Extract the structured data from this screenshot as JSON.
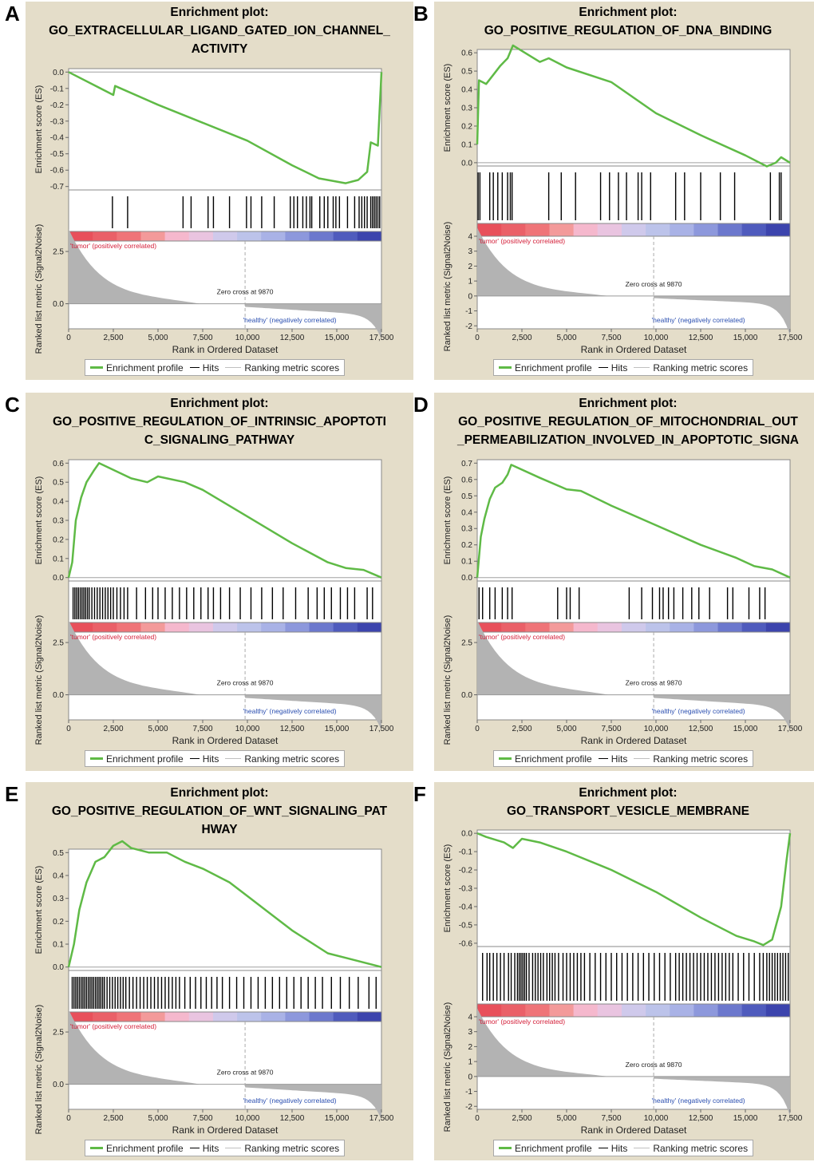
{
  "common": {
    "title_prefix": "Enrichment plot:",
    "xlabel": "Rank in Ordered Dataset",
    "ylabel_es": "Enrichment score (ES)",
    "ylabel_rank": "Ranked list metric (Signal2Noise)",
    "tumor_label": "'tumor' (positively correlated)",
    "healthy_label": "'healthy' (negatively correlated)",
    "zero_cross": "Zero cross at 9870",
    "legend": [
      "Enrichment profile",
      "Hits",
      "Ranking metric scores"
    ],
    "x_ticks": [
      "0",
      "2,500",
      "5,000",
      "7,500",
      "10,000",
      "12,500",
      "15,000",
      "17,500"
    ],
    "colors": {
      "es_line": "#5fba46",
      "metric_fill": "#b3b3b3",
      "panel_bg": "#e4ddc9",
      "tumor_text": "#d4203a",
      "healthy_text": "#2b4fb0"
    }
  },
  "chart_data": [
    {
      "panel": "A",
      "type": "line",
      "title_lines": [
        "GO_EXTRACELLULAR_LIGAND_GATED_ION_CHANNEL_",
        "ACTIVITY"
      ],
      "x_range": [
        0,
        17500
      ],
      "es_range": [
        -0.7,
        0.0
      ],
      "es_ticks": [
        "0.0",
        "-0.1",
        "-0.2",
        "-0.3",
        "-0.4",
        "-0.5",
        "-0.6",
        "-0.7"
      ],
      "rank_ticks": [
        "2.5",
        "0.0"
      ],
      "rank_range": [
        -1.2,
        3.0
      ],
      "es_points": [
        [
          0,
          0
        ],
        [
          2500,
          -0.14
        ],
        [
          2600,
          -0.085
        ],
        [
          5000,
          -0.2
        ],
        [
          7500,
          -0.31
        ],
        [
          10000,
          -0.42
        ],
        [
          12500,
          -0.57
        ],
        [
          14000,
          -0.65
        ],
        [
          15500,
          -0.68
        ],
        [
          16200,
          -0.66
        ],
        [
          16700,
          -0.61
        ],
        [
          16900,
          -0.43
        ],
        [
          17300,
          -0.45
        ],
        [
          17500,
          0
        ]
      ],
      "hits": [
        2450,
        3300,
        6400,
        6850,
        7800,
        8100,
        9000,
        9950,
        10200,
        10800,
        11500,
        12400,
        12600,
        12800,
        13100,
        13300,
        13500,
        13600,
        14050,
        14300,
        14500,
        14800,
        14950,
        15150,
        15600,
        16000,
        16250,
        16400,
        16550,
        16700,
        16900,
        17000,
        17100,
        17200,
        17300,
        17400
      ]
    },
    {
      "panel": "B",
      "type": "line",
      "title_lines": [
        "GO_POSITIVE_REGULATION_OF_DNA_BINDING"
      ],
      "x_range": [
        0,
        17500
      ],
      "es_range": [
        0.0,
        0.6
      ],
      "es_ticks": [
        "0.6",
        "0.5",
        "0.4",
        "0.3",
        "0.2",
        "0.1",
        "0.0"
      ],
      "rank_ticks": [
        "4",
        "3",
        "2",
        "1",
        "0",
        "-1",
        "-2"
      ],
      "rank_range": [
        -2.2,
        4.0
      ],
      "es_points": [
        [
          0,
          0.1
        ],
        [
          100,
          0.45
        ],
        [
          500,
          0.43
        ],
        [
          900,
          0.48
        ],
        [
          1300,
          0.53
        ],
        [
          1700,
          0.57
        ],
        [
          2000,
          0.64
        ],
        [
          3500,
          0.55
        ],
        [
          4000,
          0.57
        ],
        [
          5000,
          0.52
        ],
        [
          7500,
          0.44
        ],
        [
          10000,
          0.27
        ],
        [
          12500,
          0.15
        ],
        [
          15000,
          0.04
        ],
        [
          16200,
          -0.02
        ],
        [
          16700,
          0.0
        ],
        [
          17000,
          0.03
        ],
        [
          17500,
          0.0
        ]
      ],
      "hits": [
        50,
        150,
        700,
        900,
        1150,
        1400,
        1700,
        1850,
        1950,
        4000,
        4700,
        5500,
        6900,
        7400,
        7900,
        8350,
        9000,
        9200,
        9700,
        11100,
        11600,
        12500,
        13600,
        14400,
        16400,
        16900,
        17000
      ]
    },
    {
      "panel": "C",
      "type": "line",
      "title_lines": [
        "GO_POSITIVE_REGULATION_OF_INTRINSIC_APOPTOTI",
        "C_SIGNALING_PATHWAY"
      ],
      "x_range": [
        0,
        17500
      ],
      "es_range": [
        0.0,
        0.6
      ],
      "es_ticks": [
        "0.6",
        "0.5",
        "0.4",
        "0.3",
        "0.2",
        "0.1",
        "0.0"
      ],
      "rank_ticks": [
        "2.5",
        "0.0"
      ],
      "rank_range": [
        -1.2,
        3.0
      ],
      "es_points": [
        [
          0,
          0.0
        ],
        [
          200,
          0.08
        ],
        [
          400,
          0.3
        ],
        [
          700,
          0.42
        ],
        [
          1000,
          0.5
        ],
        [
          1400,
          0.56
        ],
        [
          1700,
          0.6
        ],
        [
          3500,
          0.52
        ],
        [
          4400,
          0.5
        ],
        [
          5000,
          0.53
        ],
        [
          6500,
          0.5
        ],
        [
          7500,
          0.46
        ],
        [
          10000,
          0.32
        ],
        [
          12500,
          0.18
        ],
        [
          14500,
          0.08
        ],
        [
          15500,
          0.05
        ],
        [
          16500,
          0.04
        ],
        [
          17500,
          0.0
        ]
      ],
      "hits": [
        250,
        350,
        450,
        550,
        650,
        750,
        850,
        950,
        1050,
        1150,
        1300,
        1450,
        1600,
        1750,
        1900,
        2050,
        2200,
        2350,
        2500,
        2700,
        2900,
        3100,
        3300,
        3800,
        4300,
        4700,
        5000,
        5400,
        5800,
        6200,
        6600,
        7000,
        7400,
        7800,
        8100,
        8500,
        9000,
        9600,
        10200,
        10800,
        11400,
        12000,
        12700,
        13400,
        13900,
        14300,
        14700,
        15200,
        15600,
        16000,
        16700,
        17000
      ]
    },
    {
      "panel": "D",
      "type": "line",
      "title_lines": [
        "GO_POSITIVE_REGULATION_OF_MITOCHONDRIAL_OUT",
        "_PERMEABILIZATION_INVOLVED_IN_APOPTOTIC_SIGNA"
      ],
      "x_range": [
        0,
        17500
      ],
      "es_range": [
        0.0,
        0.7
      ],
      "es_ticks": [
        "0.7",
        "0.6",
        "0.5",
        "0.4",
        "0.3",
        "0.2",
        "0.1",
        "0.0"
      ],
      "rank_ticks": [
        "2.5",
        "0.0"
      ],
      "rank_range": [
        -1.2,
        3.0
      ],
      "es_points": [
        [
          0,
          0.0
        ],
        [
          200,
          0.25
        ],
        [
          400,
          0.36
        ],
        [
          700,
          0.48
        ],
        [
          1000,
          0.55
        ],
        [
          1400,
          0.58
        ],
        [
          1700,
          0.63
        ],
        [
          1900,
          0.69
        ],
        [
          3500,
          0.61
        ],
        [
          5000,
          0.54
        ],
        [
          5800,
          0.53
        ],
        [
          7500,
          0.44
        ],
        [
          10000,
          0.32
        ],
        [
          12500,
          0.2
        ],
        [
          14500,
          0.12
        ],
        [
          15500,
          0.07
        ],
        [
          16500,
          0.05
        ],
        [
          17500,
          0.0
        ]
      ],
      "hits": [
        100,
        300,
        700,
        1000,
        1400,
        1700,
        1950,
        4500,
        5000,
        5200,
        5700,
        8500,
        9200,
        9800,
        10200,
        10400,
        10700,
        11000,
        11500,
        12000,
        12400,
        13000,
        14000,
        14300,
        15200,
        15800,
        16100
      ]
    },
    {
      "panel": "E",
      "type": "line",
      "title_lines": [
        "GO_POSITIVE_REGULATION_OF_WNT_SIGNALING_PAT",
        "HWAY"
      ],
      "x_range": [
        0,
        17500
      ],
      "es_range": [
        0.0,
        0.5
      ],
      "es_ticks": [
        "0.5",
        "0.4",
        "0.3",
        "0.2",
        "0.1",
        "0.0"
      ],
      "rank_ticks": [
        "2.5",
        "0.0"
      ],
      "rank_range": [
        -1.2,
        3.0
      ],
      "es_points": [
        [
          0,
          0.0
        ],
        [
          300,
          0.1
        ],
        [
          600,
          0.25
        ],
        [
          1000,
          0.37
        ],
        [
          1500,
          0.46
        ],
        [
          2000,
          0.48
        ],
        [
          2500,
          0.53
        ],
        [
          3000,
          0.55
        ],
        [
          3500,
          0.52
        ],
        [
          4500,
          0.5
        ],
        [
          5500,
          0.5
        ],
        [
          6500,
          0.46
        ],
        [
          7500,
          0.43
        ],
        [
          9000,
          0.37
        ],
        [
          10000,
          0.31
        ],
        [
          12500,
          0.16
        ],
        [
          14500,
          0.06
        ],
        [
          15500,
          0.04
        ],
        [
          17500,
          0.0
        ]
      ],
      "hits": [
        200,
        300,
        400,
        500,
        600,
        700,
        800,
        900,
        1000,
        1100,
        1200,
        1300,
        1400,
        1500,
        1600,
        1700,
        1800,
        1900,
        2000,
        2150,
        2300,
        2450,
        2600,
        2750,
        2900,
        3050,
        3200,
        3400,
        3600,
        3800,
        4000,
        4200,
        4400,
        4600,
        4800,
        5000,
        5200,
        5400,
        5600,
        5800,
        6000,
        6200,
        6500,
        6800,
        7100,
        7400,
        7700,
        8000,
        8300,
        8600,
        9000,
        9400,
        9800,
        10200,
        10600,
        11000,
        11400,
        11800,
        12200,
        12600,
        13000,
        13400,
        13800,
        14200,
        14700,
        15200,
        15700,
        16200,
        16800,
        17200
      ]
    },
    {
      "panel": "F",
      "type": "line",
      "title_lines": [
        "GO_TRANSPORT_VESICLE_MEMBRANE"
      ],
      "x_range": [
        0,
        17500
      ],
      "es_range": [
        -0.6,
        0.0
      ],
      "es_ticks": [
        "0.0",
        "-0.1",
        "-0.2",
        "-0.3",
        "-0.4",
        "-0.5",
        "-0.6"
      ],
      "rank_ticks": [
        "4",
        "3",
        "2",
        "1",
        "0",
        "-1",
        "-2"
      ],
      "rank_range": [
        -2.2,
        4.0
      ],
      "es_points": [
        [
          0,
          0.0
        ],
        [
          500,
          -0.02
        ],
        [
          1500,
          -0.05
        ],
        [
          2000,
          -0.08
        ],
        [
          2500,
          -0.03
        ],
        [
          3500,
          -0.05
        ],
        [
          5000,
          -0.1
        ],
        [
          7500,
          -0.2
        ],
        [
          10000,
          -0.32
        ],
        [
          12500,
          -0.46
        ],
        [
          14500,
          -0.56
        ],
        [
          15500,
          -0.59
        ],
        [
          16000,
          -0.61
        ],
        [
          16500,
          -0.58
        ],
        [
          17000,
          -0.4
        ],
        [
          17300,
          -0.15
        ],
        [
          17500,
          0.0
        ]
      ],
      "hits": [
        300,
        550,
        700,
        900,
        1100,
        1300,
        1500,
        1750,
        1900,
        2100,
        2250,
        2350,
        2450,
        2550,
        2650,
        2750,
        2900,
        3100,
        3250,
        3400,
        3550,
        3700,
        3900,
        4050,
        4200,
        4350,
        4550,
        4800,
        5000,
        5200,
        5400,
        5600,
        5800,
        6000,
        6300,
        6600,
        6900,
        7200,
        7500,
        7800,
        8100,
        8400,
        8700,
        9000,
        9300,
        9600,
        9900,
        10200,
        10500,
        10800,
        11100,
        11300,
        11500,
        11700,
        11900,
        12100,
        12300,
        12500,
        12700,
        12900,
        13100,
        13300,
        13500,
        13700,
        13900,
        14100,
        14300,
        14600,
        14900,
        15200,
        15500,
        15800,
        16000,
        16200,
        16350,
        16500,
        16650,
        16800,
        16950,
        17100,
        17250,
        17400
      ]
    }
  ]
}
